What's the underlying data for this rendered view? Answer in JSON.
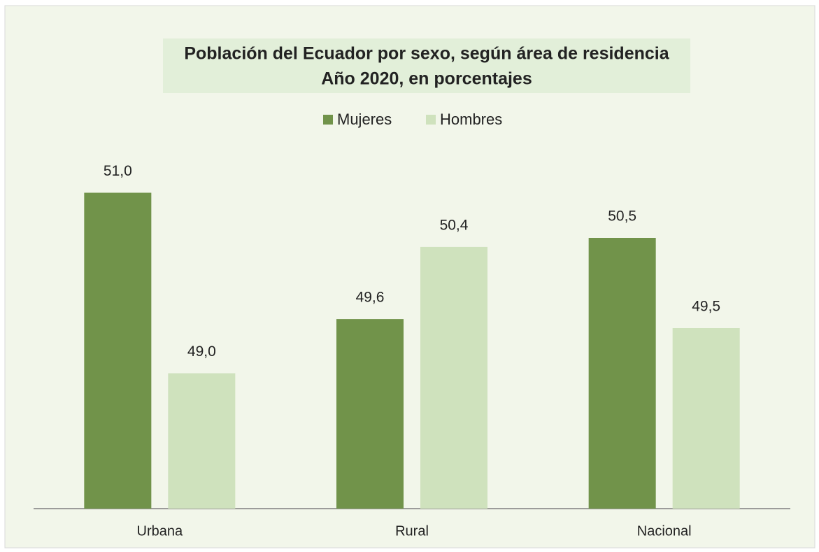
{
  "chart_data": {
    "type": "bar",
    "title": "Población del Ecuador por sexo, según área de residencia",
    "subtitle": "Año 2020, en porcentajes",
    "categories": [
      "Urbana",
      "Rural",
      "Nacional"
    ],
    "series": [
      {
        "name": "Mujeres",
        "color": "#71934a",
        "values": [
          51.0,
          49.6,
          50.5
        ],
        "value_labels": [
          "51,0",
          "49,6",
          "50,5"
        ]
      },
      {
        "name": "Hombres",
        "color": "#cfe2bd",
        "values": [
          49.0,
          50.4,
          49.5
        ],
        "value_labels": [
          "49,0",
          "50,4",
          "49,5"
        ]
      }
    ],
    "ylim": [
      47.5,
      51.5
    ],
    "legend": "top"
  }
}
